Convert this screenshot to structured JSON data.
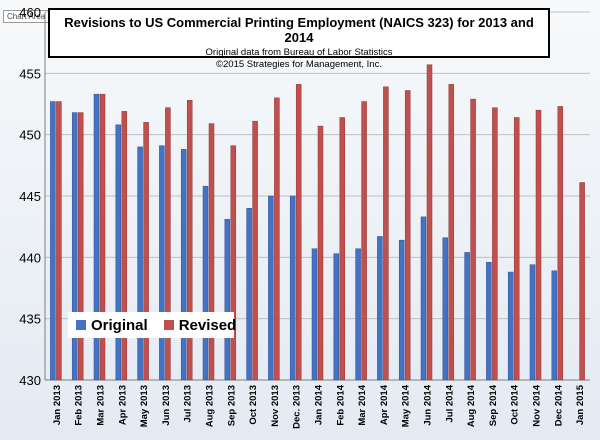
{
  "chart_area_label": "Chart Area",
  "colors": {
    "original": "#4472c4",
    "revised": "#c0504d",
    "grid": "#bfbfbf",
    "axis_text": "#000000"
  },
  "chart_data": {
    "type": "bar",
    "title": "Revisions to US Commercial Printing Employment (NAICS 323) for 2013 and 2014",
    "subtitle": [
      "Original data from Bureau of Labor Statistics",
      "©2015 Strategies for Management, Inc."
    ],
    "xlabel": "",
    "ylabel": "",
    "ylim": [
      430,
      460
    ],
    "yticks": [
      430,
      435,
      440,
      445,
      450,
      455,
      460
    ],
    "grid": true,
    "legend_position": "bottom-left",
    "categories": [
      "Jan 2013",
      "Feb 2013",
      "Mar 2013",
      "Apr 2013",
      "May 2013",
      "Jun 2013",
      "Jul 2013",
      "Aug 2013",
      "Sep 2013",
      "Oct 2013",
      "Nov 2013",
      "Dec. 2013",
      "Jan 2014",
      "Feb 2014",
      "Mar 2014",
      "Apr 2014",
      "May 2014",
      "Jun 2014",
      "Jul 2014",
      "Aug 2014",
      "Sep 2014",
      "Oct 2014",
      "Nov 2014",
      "Dec 2014",
      "Jan 2015"
    ],
    "series": [
      {
        "name": "Original",
        "values": [
          452.7,
          451.8,
          453.3,
          450.8,
          449.0,
          449.1,
          448.8,
          445.8,
          443.1,
          444.0,
          445.0,
          445.0,
          440.7,
          440.3,
          440.7,
          441.7,
          441.4,
          443.3,
          441.6,
          440.4,
          439.6,
          438.8,
          439.4,
          438.9,
          null
        ]
      },
      {
        "name": "Revised",
        "values": [
          452.7,
          451.8,
          453.3,
          451.9,
          451.0,
          452.2,
          452.8,
          450.9,
          449.1,
          451.1,
          453.0,
          454.1,
          450.7,
          451.4,
          452.7,
          453.9,
          453.6,
          455.7,
          454.1,
          452.9,
          452.2,
          451.4,
          452.0,
          452.3,
          446.1
        ]
      }
    ]
  }
}
